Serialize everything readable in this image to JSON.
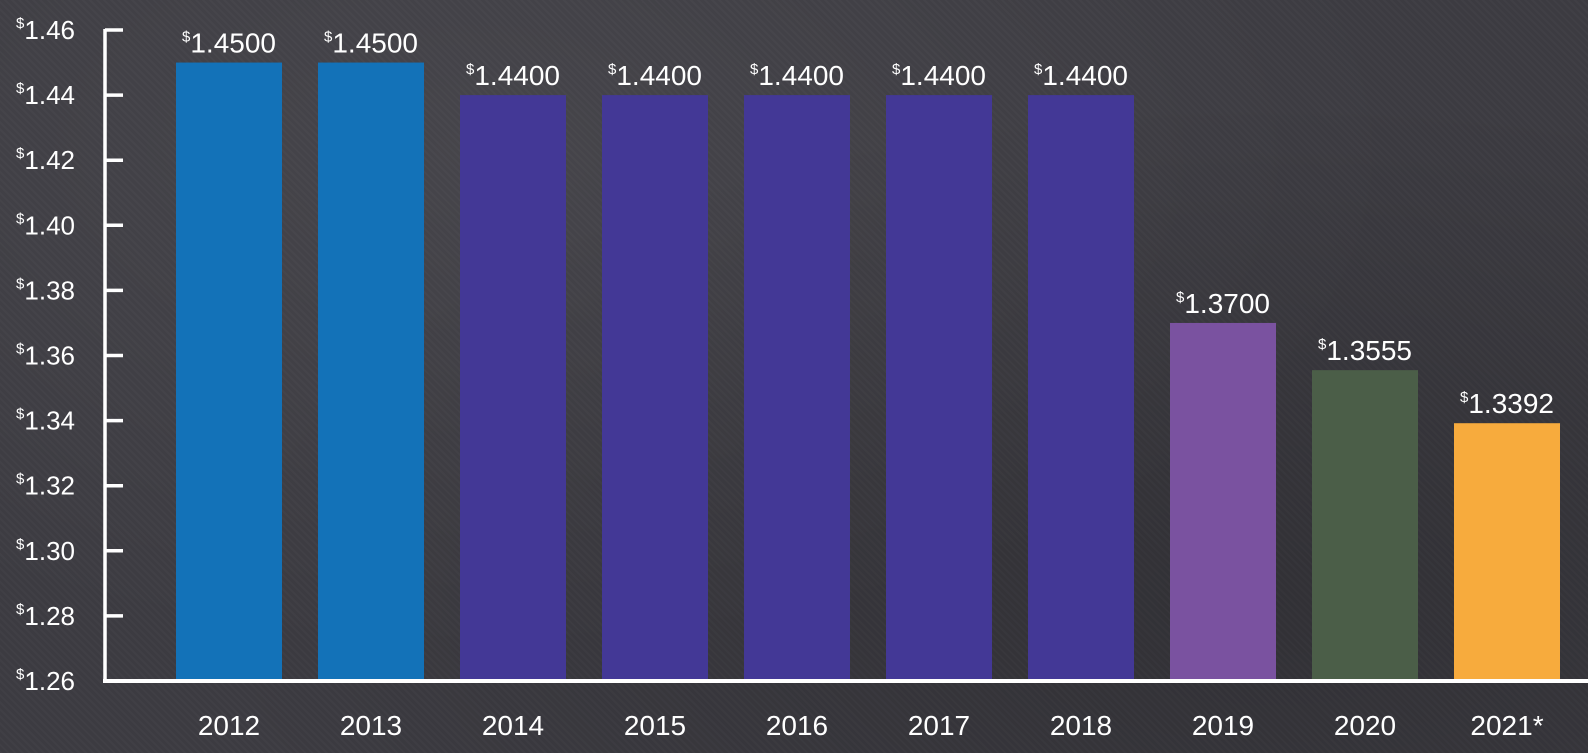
{
  "chart_data": {
    "type": "bar",
    "categories": [
      "2012",
      "2013",
      "2014",
      "2015",
      "2016",
      "2017",
      "2018",
      "2019",
      "2020",
      "2021*"
    ],
    "values": [
      1.45,
      1.45,
      1.44,
      1.44,
      1.44,
      1.44,
      1.44,
      1.37,
      1.3555,
      1.3392
    ],
    "value_labels": [
      "$1.4500",
      "$1.4500",
      "$1.4400",
      "$1.4400",
      "$1.4400",
      "$1.4400",
      "$1.4400",
      "$1.3700",
      "$1.3555",
      "$1.3392"
    ],
    "bar_colors": [
      "#1372b8",
      "#1372b8",
      "#433896",
      "#433896",
      "#433896",
      "#433896",
      "#433896",
      "#7a52a0",
      "#4b5e48",
      "#f7ab3d"
    ],
    "ylim": [
      1.26,
      1.46
    ],
    "yticks": [
      1.46,
      1.44,
      1.42,
      1.4,
      1.38,
      1.36,
      1.34,
      1.32,
      1.3,
      1.28,
      1.26
    ],
    "ytick_labels": [
      "$1.46",
      "$1.44",
      "$1.42",
      "$1.40",
      "$1.38",
      "$1.36",
      "$1.34",
      "$1.32",
      "$1.30",
      "$1.28",
      "$1.26"
    ],
    "title": "",
    "xlabel": "",
    "ylabel": "",
    "grid": false,
    "legend": "none",
    "axis_color": "#ffffff",
    "background_color": "#3d3c42"
  }
}
